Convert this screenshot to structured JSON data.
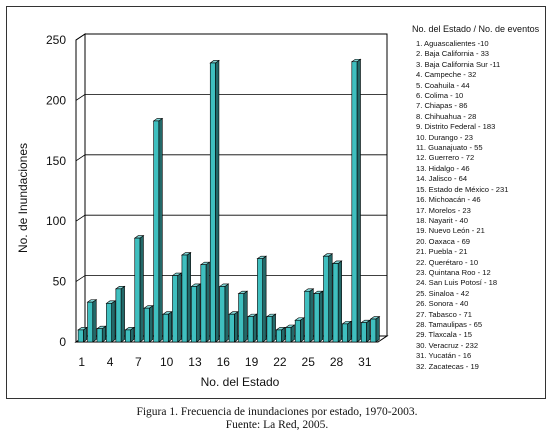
{
  "chart_data": {
    "type": "bar",
    "title": "",
    "xlabel": "No. del Estado",
    "ylabel": "No. de Inundaciones",
    "ylim": [
      0,
      250
    ],
    "y_ticks": [
      "0",
      "50",
      "100",
      "150",
      "200",
      "250"
    ],
    "x_ticks": [
      {
        "pos": 1,
        "label": "1"
      },
      {
        "pos": 4,
        "label": "4"
      },
      {
        "pos": 7,
        "label": "7"
      },
      {
        "pos": 10,
        "label": "10"
      },
      {
        "pos": 13,
        "label": "13"
      },
      {
        "pos": 16,
        "label": "16"
      },
      {
        "pos": 19,
        "label": "19"
      },
      {
        "pos": 22,
        "label": "22"
      },
      {
        "pos": 25,
        "label": "25"
      },
      {
        "pos": 28,
        "label": "28"
      },
      {
        "pos": 31,
        "label": "31"
      }
    ],
    "grid": true,
    "legend_position": "right",
    "bar_color": "#3fbfbf",
    "categories": [
      "1",
      "2",
      "3",
      "4",
      "5",
      "6",
      "7",
      "8",
      "9",
      "10",
      "11",
      "12",
      "13",
      "14",
      "15",
      "16",
      "17",
      "18",
      "19",
      "20",
      "21",
      "22",
      "23",
      "24",
      "25",
      "26",
      "27",
      "28",
      "29",
      "30",
      "31",
      "32"
    ],
    "values": [
      10,
      33,
      11,
      32,
      44,
      10,
      86,
      28,
      183,
      23,
      55,
      72,
      46,
      64,
      231,
      46,
      23,
      40,
      21,
      69,
      21,
      10,
      12,
      18,
      42,
      40,
      71,
      65,
      15,
      232,
      16,
      19
    ],
    "legend_title": "No. del Estado / No. de eventos",
    "legend_items": [
      "1. Aguascalientes -10",
      "2. Baja California - 33",
      "3. Baja California Sur -11",
      "4. Campeche - 32",
      "5. Coahuila - 44",
      "6. Colima - 10",
      "7. Chiapas - 86",
      "8. Chihuahua - 28",
      "9. Distrito Federal - 183",
      "10. Durango - 23",
      "11. Guanajuato - 55",
      "12. Guerrero - 72",
      "13. Hidalgo - 46",
      "14. Jalisco - 64",
      "15. Estado de México - 231",
      "16. Michoacán - 46",
      "17. Morelos - 23",
      "18. Nayarit - 40",
      "19. Nuevo León - 21",
      "20. Oaxaca - 69",
      "21. Puebla - 21",
      "22. Querétaro - 10",
      "23. Quintana Roo - 12",
      "24. San Luis Potosí - 18",
      "25. Sinaloa - 42",
      "26. Sonora - 40",
      "27. Tabasco - 71",
      "28. Tamaulipas - 65",
      "29. Tlaxcala - 15",
      "30. Veracruz - 232",
      "31. Yucatán - 16",
      "32. Zacatecas - 19"
    ]
  },
  "caption": {
    "line1": "Figura 1. Frecuencia de inundaciones por estado, 1970-2003.",
    "line2": "Fuente: La Red, 2005."
  }
}
